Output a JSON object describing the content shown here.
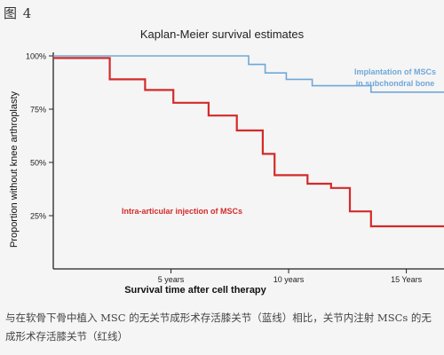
{
  "figure_label": "图 4",
  "caption": {
    "line1": "与在软骨下骨中植入 MSC 的无关节成形术存活膝关节（蓝线）相比，关节内注射 MSCs 的无",
    "line2": "成形术存活膝关节（红线）"
  },
  "chart_data": {
    "type": "line",
    "title": "Kaplan-Meier survival estimates",
    "xlabel": "Survival time after cell therapy",
    "ylabel": "Proportion without knee arthroplasty",
    "xlim": [
      0,
      16.6
    ],
    "ylim": [
      0,
      100
    ],
    "x_ticks": [
      5,
      10,
      15
    ],
    "x_tick_labels": [
      "5 years",
      "10 years",
      "15 Years"
    ],
    "y_ticks": [
      25,
      50,
      75,
      100
    ],
    "y_tick_labels": [
      "25%",
      "50%",
      "75%",
      "100%"
    ],
    "grid": false,
    "series": [
      {
        "name": "Implantation of MSCs in subchondral bone",
        "label_lines": [
          "Implantation of MSCs",
          "in subchondral bone"
        ],
        "color": "#6fa8d8",
        "steps": [
          [
            0,
            100
          ],
          [
            8.3,
            100
          ],
          [
            8.3,
            96
          ],
          [
            9,
            96
          ],
          [
            9,
            92
          ],
          [
            9.9,
            92
          ],
          [
            9.9,
            89
          ],
          [
            11,
            89
          ],
          [
            11,
            86
          ],
          [
            13.5,
            86
          ],
          [
            13.5,
            83
          ],
          [
            16.6,
            83
          ]
        ]
      },
      {
        "name": "Intra-articular injection of MSCs",
        "label_lines": [
          "Intra-articular injection of MSCs"
        ],
        "color": "#d42a2a",
        "steps": [
          [
            0,
            99
          ],
          [
            2.4,
            99
          ],
          [
            2.4,
            89
          ],
          [
            3.9,
            89
          ],
          [
            3.9,
            84
          ],
          [
            5.1,
            84
          ],
          [
            5.1,
            78
          ],
          [
            6.6,
            78
          ],
          [
            6.6,
            72
          ],
          [
            7.8,
            72
          ],
          [
            7.8,
            65
          ],
          [
            8.9,
            65
          ],
          [
            8.9,
            54
          ],
          [
            9.4,
            54
          ],
          [
            9.4,
            44
          ],
          [
            10.8,
            44
          ],
          [
            10.8,
            40
          ],
          [
            11.8,
            40
          ],
          [
            11.8,
            38
          ],
          [
            12.6,
            38
          ],
          [
            12.6,
            27
          ],
          [
            13.5,
            27
          ],
          [
            13.5,
            20
          ],
          [
            16.6,
            20
          ]
        ]
      }
    ]
  }
}
